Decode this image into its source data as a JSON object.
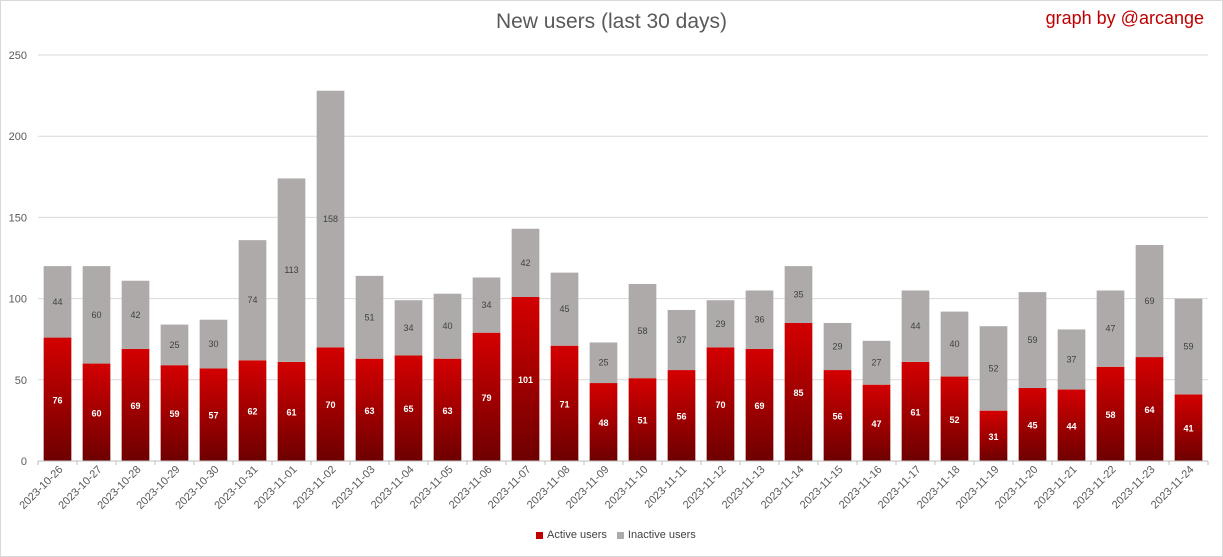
{
  "chart_data": {
    "type": "bar",
    "stacked": true,
    "title": "New users (last 30 days)",
    "credit": "graph by @arcange",
    "xlabel": "",
    "ylabel": "",
    "ylim": [
      0,
      250
    ],
    "yticks": [
      "0",
      "50",
      "100",
      "150",
      "200",
      "250"
    ],
    "grid": true,
    "legend_position": "bottom",
    "categories": [
      "2023-10-26",
      "2023-10-27",
      "2023-10-28",
      "2023-10-29",
      "2023-10-30",
      "2023-10-31",
      "2023-11-01",
      "2023-11-02",
      "2023-11-03",
      "2023-11-04",
      "2023-11-05",
      "2023-11-06",
      "2023-11-07",
      "2023-11-08",
      "2023-11-09",
      "2023-11-10",
      "2023-11-11",
      "2023-11-12",
      "2023-11-13",
      "2023-11-14",
      "2023-11-15",
      "2023-11-16",
      "2023-11-17",
      "2023-11-18",
      "2023-11-19",
      "2023-11-20",
      "2023-11-21",
      "2023-11-22",
      "2023-11-23",
      "2023-11-24"
    ],
    "series": [
      {
        "name": "Active users",
        "color": "#c00000",
        "values": [
          76,
          60,
          69,
          59,
          57,
          62,
          61,
          70,
          63,
          65,
          63,
          79,
          101,
          71,
          48,
          51,
          56,
          70,
          69,
          85,
          56,
          47,
          61,
          52,
          31,
          45,
          44,
          58,
          64,
          41
        ]
      },
      {
        "name": "Inactive users",
        "color": "#aeaaaa",
        "values": [
          44,
          60,
          42,
          25,
          30,
          74,
          113,
          158,
          51,
          34,
          40,
          34,
          42,
          45,
          25,
          58,
          37,
          29,
          36,
          35,
          29,
          27,
          44,
          40,
          52,
          59,
          37,
          47,
          69,
          59
        ]
      }
    ]
  }
}
